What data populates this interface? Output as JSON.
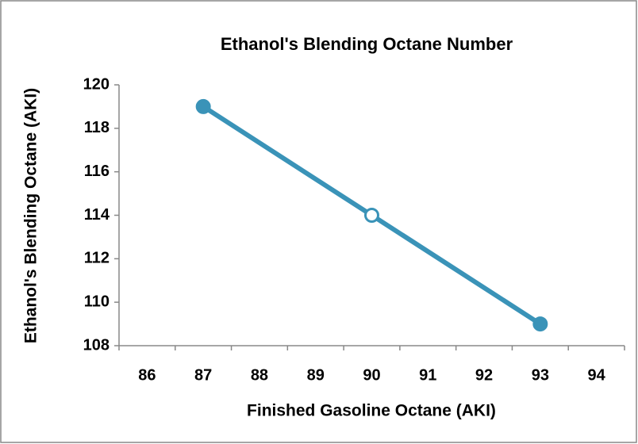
{
  "chart_data": {
    "type": "line",
    "title": "Ethanol's Blending Octane Number",
    "x_label": "Finished Gasoline Octane (AKI)",
    "y_label": "Ethanol's Blending Octane (AKI)",
    "x": [
      87,
      90,
      93
    ],
    "series": [
      {
        "name": "Ethanol's Blending Octane",
        "color": "#3a93b8",
        "marker_fills": [
          "#3a93b8",
          "#ffffff",
          "#3a93b8"
        ],
        "values": [
          119,
          114,
          109
        ]
      }
    ],
    "xlim": [
      85.5,
      94.5
    ],
    "xticks": [
      86,
      87,
      88,
      89,
      90,
      91,
      92,
      93,
      94
    ],
    "ylim": [
      108,
      120
    ],
    "yticks": [
      108,
      110,
      112,
      114,
      116,
      118,
      120
    ],
    "grid": false
  }
}
